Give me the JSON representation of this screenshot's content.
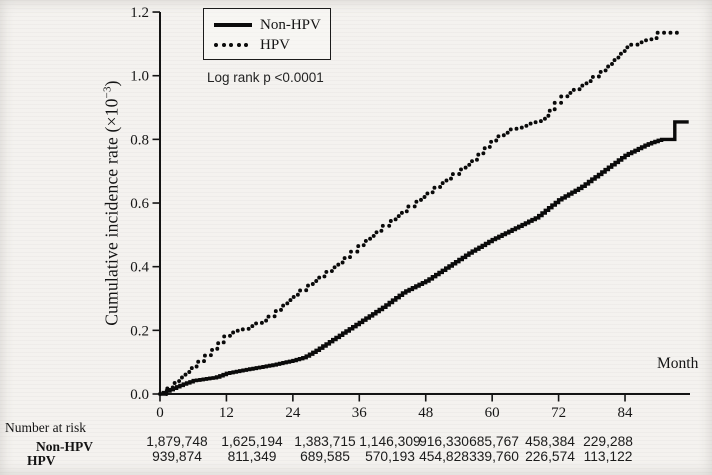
{
  "figure": {
    "y_axis_title": {
      "prefix": "Cumulative incidence rate (×10",
      "sup": "−3",
      "suffix": ")"
    },
    "annotation": "Log rank p <0.0001"
  },
  "chart_data": {
    "type": "line",
    "subtype": "cumulative-incidence-step-curves",
    "title": "",
    "xlabel": "Month",
    "ylabel": "Cumulative incidence rate (×10−3)",
    "xlim": [
      0,
      96
    ],
    "ylim": [
      0,
      1.2
    ],
    "xticks": [
      0,
      12,
      24,
      36,
      48,
      60,
      72,
      84
    ],
    "yticks": [
      0.0,
      0.2,
      0.4,
      0.6,
      0.8,
      1.0,
      1.2
    ],
    "grid": false,
    "legend_position": "top-left-inside-box",
    "log_rank_p": "<0.0001",
    "series": [
      {
        "name": "Non-HPV",
        "line_style": "solid",
        "color": "#0a0a0a",
        "points": [
          [
            0,
            0
          ],
          [
            2,
            0.015
          ],
          [
            4,
            0.03
          ],
          [
            6,
            0.042
          ],
          [
            10,
            0.052
          ],
          [
            12,
            0.065
          ],
          [
            16,
            0.078
          ],
          [
            20,
            0.09
          ],
          [
            24,
            0.105
          ],
          [
            26,
            0.115
          ],
          [
            28,
            0.135
          ],
          [
            32,
            0.18
          ],
          [
            36,
            0.225
          ],
          [
            40,
            0.27
          ],
          [
            44,
            0.32
          ],
          [
            48,
            0.355
          ],
          [
            52,
            0.4
          ],
          [
            56,
            0.445
          ],
          [
            60,
            0.485
          ],
          [
            64,
            0.52
          ],
          [
            68,
            0.555
          ],
          [
            72,
            0.61
          ],
          [
            76,
            0.65
          ],
          [
            80,
            0.7
          ],
          [
            84,
            0.75
          ],
          [
            88,
            0.785
          ],
          [
            90.5,
            0.8
          ],
          [
            92.6,
            0.8
          ],
          [
            93,
            0.855
          ],
          [
            95.5,
            0.855
          ]
        ]
      },
      {
        "name": "HPV",
        "line_style": "dotted",
        "color": "#0a0a0a",
        "points": [
          [
            0,
            0
          ],
          [
            2,
            0.03
          ],
          [
            6,
            0.09
          ],
          [
            9,
            0.135
          ],
          [
            12,
            0.19
          ],
          [
            15,
            0.205
          ],
          [
            19,
            0.235
          ],
          [
            24,
            0.31
          ],
          [
            28,
            0.36
          ],
          [
            32,
            0.41
          ],
          [
            36,
            0.47
          ],
          [
            40,
            0.525
          ],
          [
            44,
            0.578
          ],
          [
            48,
            0.63
          ],
          [
            52,
            0.68
          ],
          [
            56,
            0.73
          ],
          [
            60,
            0.8
          ],
          [
            63,
            0.83
          ],
          [
            66,
            0.845
          ],
          [
            69,
            0.865
          ],
          [
            72,
            0.93
          ],
          [
            76,
            0.97
          ],
          [
            80,
            1.02
          ],
          [
            84,
            1.09
          ],
          [
            87,
            1.11
          ],
          [
            88.8,
            1.115
          ],
          [
            89.2,
            1.135
          ],
          [
            94,
            1.135
          ]
        ]
      }
    ],
    "number_at_risk": {
      "title": "Number at risk",
      "rows": [
        {
          "label": "Non-HPV",
          "values": [
            "1,879,748",
            "1,625,194",
            "1,383,715",
            "1,146,309",
            "916,330",
            "685,767",
            "458,384",
            "229,288"
          ]
        },
        {
          "label": "HPV",
          "values": [
            "939,874",
            "811,349",
            "689,585",
            "570,193",
            "454,828",
            "339,760",
            "226,574",
            "113,122"
          ]
        }
      ]
    }
  }
}
